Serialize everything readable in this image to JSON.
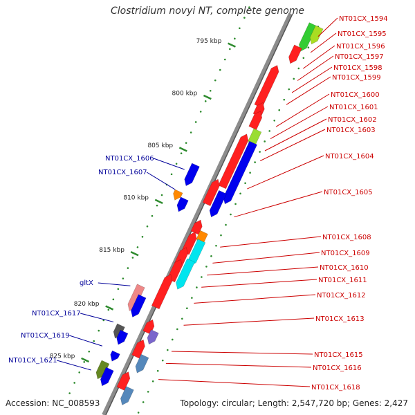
{
  "title": "Clostridium novyi NT, complete genome",
  "footer": {
    "accession": "Accession: NC_008593",
    "topology": "Topology: circular; Length: 2,547,720 bp; Genes: 2,427"
  },
  "colors": {
    "right_label": "#cc0000",
    "left_label": "#000099",
    "tick": "#2e8b2e",
    "backbone": "#8c8c8c"
  },
  "ticks": [
    {
      "label": "795 kbp",
      "t": 0.12
    },
    {
      "label": "800 kbp",
      "t": 0.25
    },
    {
      "label": "805 kbp",
      "t": 0.38
    },
    {
      "label": "810 kbp",
      "t": 0.51
    },
    {
      "label": "815 kbp",
      "t": 0.64
    },
    {
      "label": "820 kbp",
      "t": 0.775
    },
    {
      "label": "825 kbp",
      "t": 0.905
    }
  ],
  "right_labels": [
    "NT01CX_1594",
    "NT01CX_1595",
    "NT01CX_1596",
    "NT01CX_1597",
    "NT01CX_1598",
    "NT01CX_1599",
    "NT01CX_1600",
    "NT01CX_1601",
    "NT01CX_1602",
    "NT01CX_1603",
    "NT01CX_1604",
    "NT01CX_1605",
    "NT01CX_1608",
    "NT01CX_1609",
    "NT01CX_1610",
    "NT01CX_1611",
    "NT01CX_1612",
    "NT01CX_1613",
    "NT01CX_1615",
    "NT01CX_1616",
    "NT01CX_1618"
  ],
  "left_labels": [
    "NT01CX_1606",
    "NT01CX_1607",
    "gltX",
    "NT01CX_1617",
    "NT01CX_1619",
    "NT01CX_1621"
  ]
}
